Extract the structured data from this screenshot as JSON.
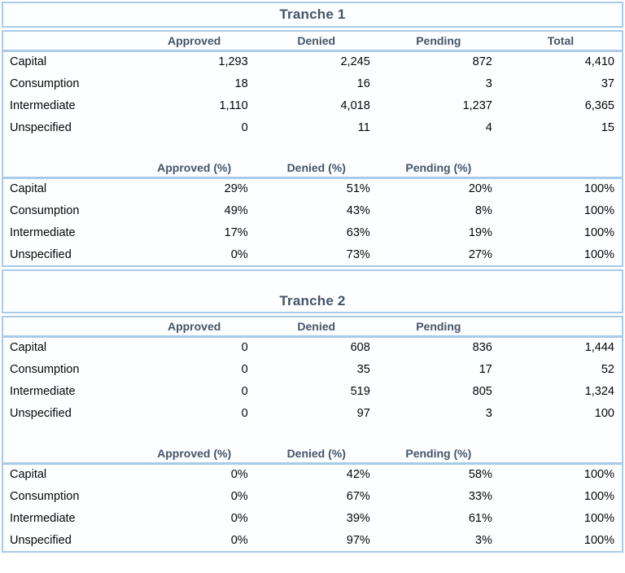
{
  "colors": {
    "border_blue": "#a9cbe8",
    "header_text": "#44546a",
    "body_text": "#060606",
    "background": "#ffffff"
  },
  "tranches": [
    {
      "title": "Tranche 1",
      "counts": {
        "columns": [
          "Approved",
          "Denied",
          "Pending",
          "Total"
        ],
        "rows": [
          {
            "label": "Capital",
            "values": [
              "1,293",
              "2,245",
              "872",
              "4,410"
            ]
          },
          {
            "label": "Consumption",
            "values": [
              "18",
              "16",
              "3",
              "37"
            ]
          },
          {
            "label": "Intermediate",
            "values": [
              "1,110",
              "4,018",
              "1,237",
              "6,365"
            ]
          },
          {
            "label": "Unspecified",
            "values": [
              "0",
              "11",
              "4",
              "15"
            ]
          }
        ]
      },
      "percentages": {
        "columns": [
          "Approved (%)",
          "Denied (%)",
          "Pending (%)",
          ""
        ],
        "rows": [
          {
            "label": "Capital",
            "values": [
              "29%",
              "51%",
              "20%",
              "100%"
            ]
          },
          {
            "label": "Consumption",
            "values": [
              "49%",
              "43%",
              "8%",
              "100%"
            ]
          },
          {
            "label": "Intermediate",
            "values": [
              "17%",
              "63%",
              "19%",
              "100%"
            ]
          },
          {
            "label": "Unspecified",
            "values": [
              "0%",
              "73%",
              "27%",
              "100%"
            ]
          }
        ]
      }
    },
    {
      "title": "Tranche 2",
      "counts": {
        "columns": [
          "Approved",
          "Denied",
          "Pending",
          ""
        ],
        "rows": [
          {
            "label": "Capital",
            "values": [
              "0",
              "608",
              "836",
              "1,444"
            ]
          },
          {
            "label": "Consumption",
            "values": [
              "0",
              "35",
              "17",
              "52"
            ]
          },
          {
            "label": "Intermediate",
            "values": [
              "0",
              "519",
              "805",
              "1,324"
            ]
          },
          {
            "label": "Unspecified",
            "values": [
              "0",
              "97",
              "3",
              "100"
            ]
          }
        ]
      },
      "percentages": {
        "columns": [
          "Approved (%)",
          "Denied (%)",
          "Pending (%)",
          ""
        ],
        "rows": [
          {
            "label": "Capital",
            "values": [
              "0%",
              "42%",
              "58%",
              "100%"
            ]
          },
          {
            "label": "Consumption",
            "values": [
              "0%",
              "67%",
              "33%",
              "100%"
            ]
          },
          {
            "label": "Intermediate",
            "values": [
              "0%",
              "39%",
              "61%",
              "100%"
            ]
          },
          {
            "label": "Unspecified",
            "values": [
              "0%",
              "97%",
              "3%",
              "100%"
            ]
          }
        ]
      }
    }
  ]
}
